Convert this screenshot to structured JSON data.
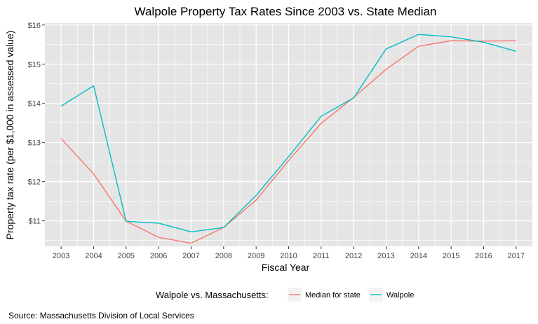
{
  "chart_data": {
    "type": "line",
    "title": "Walpole Property Tax Rates Since 2003 vs. State Median",
    "xlabel": "Fiscal Year",
    "ylabel": "Property tax rate (per $1,000 in assessed value)",
    "x": [
      2003,
      2004,
      2005,
      2006,
      2007,
      2008,
      2009,
      2010,
      2011,
      2012,
      2013,
      2014,
      2015,
      2016,
      2017
    ],
    "x_tick_labels": [
      "2003",
      "2004",
      "2005",
      "2006",
      "2007",
      "2008",
      "2009",
      "2010",
      "2011",
      "2012",
      "2013",
      "2014",
      "2015",
      "2016",
      "2017"
    ],
    "y_ticks": [
      11,
      12,
      13,
      14,
      15,
      16
    ],
    "y_tick_labels": [
      "$11",
      "$12",
      "$13",
      "$14",
      "$15",
      "$16"
    ],
    "ylim": [
      10.35,
      16.05
    ],
    "grid": true,
    "legend_position": "bottom",
    "legend_title": "Walpole vs. Massachusetts:",
    "series": [
      {
        "name": "Median for state",
        "color": "#F8766D",
        "values": [
          13.1,
          12.2,
          10.99,
          10.58,
          10.43,
          10.83,
          11.53,
          12.54,
          13.49,
          14.15,
          14.87,
          15.46,
          15.6,
          15.59,
          15.6
        ]
      },
      {
        "name": "Walpole",
        "color": "#00BFC4",
        "values": [
          13.93,
          14.45,
          10.99,
          10.94,
          10.72,
          10.83,
          11.65,
          12.64,
          13.67,
          14.14,
          15.39,
          15.76,
          15.7,
          15.56,
          15.33
        ]
      }
    ],
    "caption": "Source: Massachusetts Division of Local Services"
  },
  "colors": {
    "panel_background": "#E5E5E5",
    "grid_line": "#FFFFFF",
    "state_line": "#F8766D",
    "walpole_line": "#00BFC4"
  }
}
